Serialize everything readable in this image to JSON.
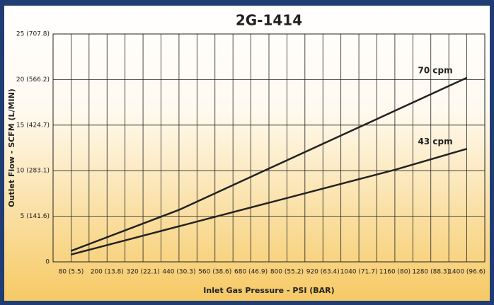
{
  "chart_data": {
    "type": "line",
    "title": "2G-1414",
    "x_label": "Inlet Gas Pressure - PSI (BAR)",
    "y_label": "Outlet Flow - SCFM (L/MIN)",
    "xlim": [
      20,
      1460
    ],
    "xticks": [
      {
        "value": 80,
        "label": "80 (5.5)"
      },
      {
        "value": 200,
        "label": "200 (13.8)"
      },
      {
        "value": 320,
        "label": "320 (22.1)"
      },
      {
        "value": 440,
        "label": "440 (30.3)"
      },
      {
        "value": 560,
        "label": "560 (38.6)"
      },
      {
        "value": 680,
        "label": "680 (46.9)"
      },
      {
        "value": 800,
        "label": "800 (55.2)"
      },
      {
        "value": 920,
        "label": "920 (63.4)"
      },
      {
        "value": 1040,
        "label": "1040 (71.7)"
      },
      {
        "value": 1160,
        "label": "1160 (80)"
      },
      {
        "value": 1280,
        "label": "1280 (88.3)"
      },
      {
        "value": 1400,
        "label": "1400 (96.6)"
      }
    ],
    "ylim": [
      0,
      25
    ],
    "yticks": [
      0,
      {
        "value": 5,
        "label": "5 (141.6)"
      },
      {
        "value": 10,
        "label": "10 (283.1)"
      },
      {
        "value": 15,
        "label": "15 (424.7)"
      },
      {
        "value": 20,
        "label": "20 (566.2)"
      },
      {
        "value": 25,
        "label": "25 (707.8)"
      }
    ],
    "grid": true,
    "series": [
      {
        "name": "70 cpm",
        "color": "#222222",
        "x": [
          80,
          440,
          1400
        ],
        "values": [
          1.2,
          5.7,
          20.2
        ]
      },
      {
        "name": "43 cpm",
        "color": "#222222",
        "x": [
          80,
          1160,
          1400
        ],
        "values": [
          0.8,
          10.1,
          12.4
        ]
      }
    ]
  }
}
